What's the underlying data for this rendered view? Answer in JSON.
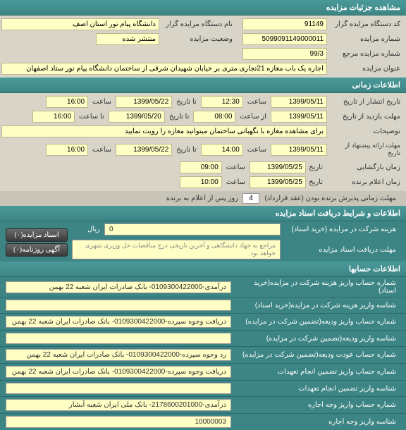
{
  "colors": {
    "header_bg": "#3d8585",
    "header_text": "#ffffff",
    "body_bg": "#d8d4c8",
    "value_bg": "#fffec4",
    "value_border": "#b8b890",
    "btn_bg_top": "#6a6a6a",
    "btn_bg_bottom": "#3a3a3a"
  },
  "section1": {
    "title": "مشاهده جزئیات مزایده",
    "code_label": "کد دستگاه مزایده گزار",
    "code_value": "91149",
    "name_label": "نام دستگاه مزایده گزار",
    "name_value": "دانشگاه پیام نور استان اصف",
    "auction_no_label": "شماره مزایده",
    "auction_no_value": "5099091149000011",
    "status_label": "وضعیت مزایده",
    "status_value": "منتشر شده",
    "ref_no_label": "شماره مزایده مرجع",
    "ref_no_value": "99/3",
    "title_label": "عنوان مزایده",
    "title_value": "اجاره یک باب مغازه 21تجاری متری بر خیابان شهیدان شرقی از ساختمان دانشگاه پیام نور ستاد اصفهان"
  },
  "section2": {
    "title": "اطلاعات زمانی",
    "publish_label": "تاریخ انتشار از تاریخ",
    "publish_from": "1399/05/11",
    "time_label": "ساعت",
    "publish_time": "12:30",
    "to_date_label": "تا تاریخ",
    "publish_to": "1399/05/22",
    "publish_to_time": "16:00",
    "visit_label": "مهلت بازدید از تاریخ",
    "visit_from": "1399/05/11",
    "from_time_label": "از ساعت",
    "visit_from_time": "08:00",
    "visit_to": "1399/05/20",
    "to_time_label": "تا ساعت",
    "visit_to_time": "16:00",
    "notes_label": "توضیحات",
    "notes_value": "برای مشاهده مغازه با نگهبانی ساختمان میتوانید مغازه را رویت نمایید",
    "offer_label": "مهلت ارائه پیشنهاد از تاریخ",
    "offer_from": "1399/05/11",
    "offer_time": "14:00",
    "offer_to": "1399/05/22",
    "offer_to_time": "16:00",
    "open_label": "زمان بازگشایی",
    "open_date": "1399/05/25",
    "open_time": "09:00",
    "announce_label": "زمان اعلام برنده",
    "announce_date": "1399/05/25",
    "announce_time": "10:00",
    "winner_accept_label": "مهلت زمانی پذیرش برنده بودن (عقد قرارداد)",
    "winner_accept_value": "4",
    "winner_accept_suffix": "روز پس از اعلام به برنده"
  },
  "section3": {
    "title": "اطلاعات و شرایط دریافت اسناد مزایده",
    "cost_label": "هزینه شرکت در مزایده (خرید اسناد)",
    "cost_value": "0",
    "currency": "ریال",
    "deadline_label": "مهلت دریافت اسناد مزایده",
    "deadline_placeholder": "مراجع به جهاد دانشگاهی و آخرین تاریخی درج مناقصات حل وزیری شهری خواهد بود",
    "btn1": "اسناد مزایده(۰)",
    "btn2": "آگهی روزنامه(۰)"
  },
  "section4": {
    "title": "اطلاعات حسابها",
    "rows": [
      {
        "label": "شماره حساب واریز هزینه شرکت در مزایده(خرید اسناد)",
        "value": "درآمدی-0109300422000- بانک صادرات ایران شعبه 22 بهمن"
      },
      {
        "label": "شناسه واریز هزینه شرکت در مزایده(خرید اسناد)",
        "value": ""
      },
      {
        "label": "شماره حساب واریز ودیعه(تضمین شرکت در مزایده)",
        "value": "دریافت وجوه سپرده-0109300422000- بانک صادرات ایران شعبه 22 بهمن"
      },
      {
        "label": "شناسه واریز ودیعه(تضمین شرکت در مزایده)",
        "value": ""
      },
      {
        "label": "شماره حساب عودت ودیعه(تضمین شرکت در مزایده)",
        "value": "رد وجوه سپرده-0109300422000- بانک صادرات ایران شعبه 22 بهمن"
      },
      {
        "label": "شماره حساب واریز تضمین انجام تعهدات",
        "value": "دریافت وجوه سپرده-0109300422000- بانک صادرات ایران شعبه 22 بهمن"
      },
      {
        "label": "شناسه واریز تضمین انجام تعهدات",
        "value": ""
      },
      {
        "label": "شماره حساب واریز وجه اجاره",
        "value": "درآمدی-2178600201000- بانک ملی ایران شعبه آبشار"
      },
      {
        "label": "شناسه واریز وجه اجاره",
        "value": "10000003"
      }
    ]
  }
}
